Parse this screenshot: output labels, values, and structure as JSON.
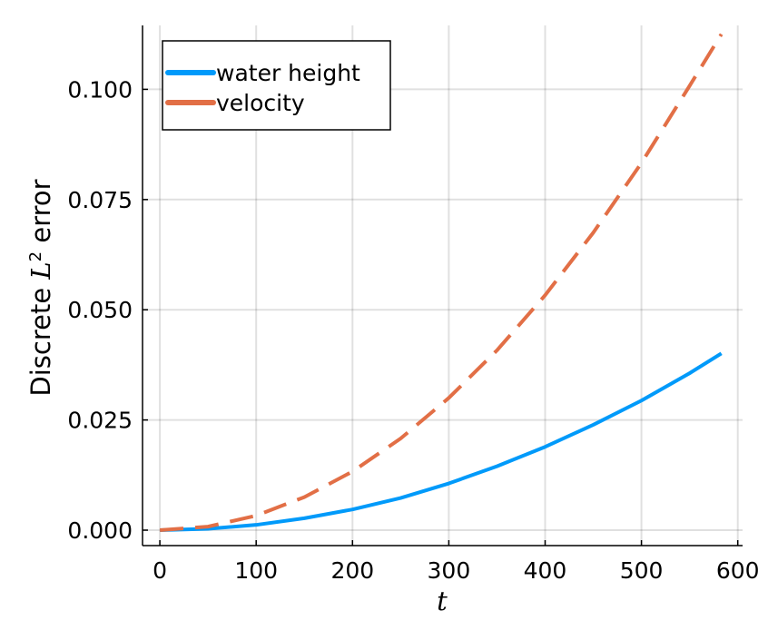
{
  "chart_data": {
    "type": "line",
    "xlabel": "t",
    "ylabel": {
      "prefix": "Discrete ",
      "symbol": "L",
      "superscript": "2",
      "suffix": " error"
    },
    "xlim": [
      -18,
      605
    ],
    "ylim": [
      -0.0035,
      0.1145
    ],
    "xticks": [
      0,
      100,
      200,
      300,
      400,
      500,
      600
    ],
    "xtick_labels": [
      "0",
      "100",
      "200",
      "300",
      "400",
      "500",
      "600"
    ],
    "yticks": [
      0,
      0.025,
      0.05,
      0.075,
      0.1
    ],
    "ytick_labels": [
      "0.000",
      "0.025",
      "0.050",
      "0.075",
      "0.100"
    ],
    "grid": true,
    "legend_position": "top-left",
    "series": [
      {
        "name": "water height",
        "color": "#009AFA",
        "style": "solid",
        "x": [
          0,
          50,
          100,
          150,
          200,
          250,
          300,
          350,
          400,
          450,
          500,
          550,
          583
        ],
        "y": [
          0.0,
          0.0003,
          0.0012,
          0.0027,
          0.0047,
          0.0073,
          0.0106,
          0.0145,
          0.0189,
          0.0239,
          0.0294,
          0.0356,
          0.0401
        ]
      },
      {
        "name": "velocity",
        "color": "#E26F46",
        "style": "dashed",
        "x": [
          0,
          50,
          100,
          150,
          200,
          250,
          300,
          350,
          400,
          450,
          500,
          550,
          583
        ],
        "y": [
          0.0,
          0.0008,
          0.0033,
          0.0075,
          0.0133,
          0.0208,
          0.03,
          0.0408,
          0.0533,
          0.0675,
          0.0833,
          0.1008,
          0.1125
        ]
      }
    ]
  }
}
